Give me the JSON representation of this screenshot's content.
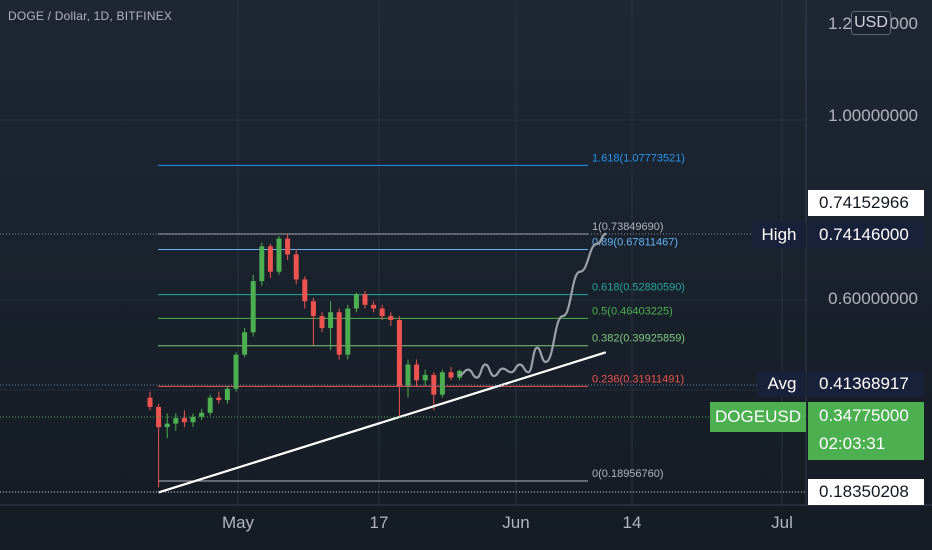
{
  "header": {
    "symbol_title": "DOGE / Dollar, 1D, BITFINEX",
    "currency_button": "USD"
  },
  "price_axis": {
    "ticks": [
      "1.20000000",
      "1.00000000",
      "0.60000000"
    ]
  },
  "price_tags": {
    "last_visible_price": "0.74152966",
    "high_label": "High",
    "high_value": "0.74146000",
    "avg_label": "Avg",
    "avg_value": "0.41368917",
    "symbol_label": "DOGEUSD",
    "current_price": "0.34775000",
    "countdown": "02:03:31",
    "low_value": "0.18350208"
  },
  "time_axis": {
    "labels": [
      "May",
      "17",
      "Jun",
      "14",
      "Jul"
    ]
  },
  "colors": {
    "up": "#4caf50",
    "down": "#ef5350",
    "fib_1618": "#2196f3",
    "fib_1": "#b2b5be",
    "fib_089": "#64b5f6",
    "fib_0618": "#26a69a",
    "fib_05": "#4caf50",
    "fib_0382": "#81c784",
    "fib_0236": "#ef5350",
    "fib_0": "#b2b5be",
    "trendline": "#ffffff",
    "projection": "#9aa0a8"
  },
  "chart_data": {
    "type": "candlestick",
    "title": "DOGE / Dollar, 1D, BITFINEX",
    "y_scale": "log",
    "ylim": [
      0.17,
      1.25
    ],
    "candles": [
      {
        "o": 0.3,
        "h": 0.31,
        "l": 0.28,
        "c": 0.285
      },
      {
        "o": 0.285,
        "h": 0.29,
        "l": 0.183,
        "c": 0.255
      },
      {
        "o": 0.255,
        "h": 0.275,
        "l": 0.24,
        "c": 0.26
      },
      {
        "o": 0.26,
        "h": 0.275,
        "l": 0.25,
        "c": 0.268
      },
      {
        "o": 0.268,
        "h": 0.28,
        "l": 0.255,
        "c": 0.262
      },
      {
        "o": 0.262,
        "h": 0.275,
        "l": 0.255,
        "c": 0.27
      },
      {
        "o": 0.27,
        "h": 0.282,
        "l": 0.265,
        "c": 0.276
      },
      {
        "o": 0.276,
        "h": 0.305,
        "l": 0.272,
        "c": 0.3
      },
      {
        "o": 0.3,
        "h": 0.31,
        "l": 0.29,
        "c": 0.296
      },
      {
        "o": 0.296,
        "h": 0.32,
        "l": 0.29,
        "c": 0.315
      },
      {
        "o": 0.315,
        "h": 0.385,
        "l": 0.31,
        "c": 0.38
      },
      {
        "o": 0.38,
        "h": 0.44,
        "l": 0.375,
        "c": 0.43
      },
      {
        "o": 0.43,
        "h": 0.59,
        "l": 0.42,
        "c": 0.57
      },
      {
        "o": 0.57,
        "h": 0.705,
        "l": 0.555,
        "c": 0.69
      },
      {
        "o": 0.69,
        "h": 0.7,
        "l": 0.58,
        "c": 0.6
      },
      {
        "o": 0.6,
        "h": 0.73,
        "l": 0.59,
        "c": 0.72
      },
      {
        "o": 0.72,
        "h": 0.741,
        "l": 0.64,
        "c": 0.66
      },
      {
        "o": 0.66,
        "h": 0.68,
        "l": 0.56,
        "c": 0.575
      },
      {
        "o": 0.575,
        "h": 0.585,
        "l": 0.49,
        "c": 0.51
      },
      {
        "o": 0.51,
        "h": 0.52,
        "l": 0.4,
        "c": 0.47
      },
      {
        "o": 0.47,
        "h": 0.48,
        "l": 0.43,
        "c": 0.44
      },
      {
        "o": 0.44,
        "h": 0.51,
        "l": 0.39,
        "c": 0.48
      },
      {
        "o": 0.48,
        "h": 0.49,
        "l": 0.37,
        "c": 0.38
      },
      {
        "o": 0.38,
        "h": 0.5,
        "l": 0.37,
        "c": 0.49
      },
      {
        "o": 0.49,
        "h": 0.535,
        "l": 0.48,
        "c": 0.53
      },
      {
        "o": 0.53,
        "h": 0.54,
        "l": 0.49,
        "c": 0.5
      },
      {
        "o": 0.5,
        "h": 0.51,
        "l": 0.48,
        "c": 0.49
      },
      {
        "o": 0.49,
        "h": 0.5,
        "l": 0.46,
        "c": 0.47
      },
      {
        "o": 0.47,
        "h": 0.48,
        "l": 0.445,
        "c": 0.46
      },
      {
        "o": 0.46,
        "h": 0.47,
        "l": 0.27,
        "c": 0.32
      },
      {
        "o": 0.32,
        "h": 0.37,
        "l": 0.3,
        "c": 0.36
      },
      {
        "o": 0.36,
        "h": 0.37,
        "l": 0.32,
        "c": 0.33
      },
      {
        "o": 0.33,
        "h": 0.35,
        "l": 0.32,
        "c": 0.34
      },
      {
        "o": 0.34,
        "h": 0.345,
        "l": 0.28,
        "c": 0.305
      },
      {
        "o": 0.305,
        "h": 0.35,
        "l": 0.3,
        "c": 0.345
      },
      {
        "o": 0.345,
        "h": 0.355,
        "l": 0.33,
        "c": 0.335
      },
      {
        "o": 0.335,
        "h": 0.35,
        "l": 0.33,
        "c": 0.34775
      }
    ],
    "fib_levels": [
      {
        "ratio": "1.618",
        "value": 1.07773521,
        "label": "1.618(1.07773521)",
        "color_key": "fib_1618"
      },
      {
        "ratio": "1",
        "value": 0.7384969,
        "label": "1(0.73849690)",
        "color_key": "fib_1"
      },
      {
        "ratio": "0.89",
        "value": 0.67811467,
        "label": "0.89(0.67811467)",
        "color_key": "fib_089"
      },
      {
        "ratio": "0.618",
        "value": 0.5288059,
        "label": "0.618(0.52880590)",
        "color_key": "fib_0618"
      },
      {
        "ratio": "0.5",
        "value": 0.46403225,
        "label": "0.5(0.46403225)",
        "color_key": "fib_05"
      },
      {
        "ratio": "0.382",
        "value": 0.39925859,
        "label": "0.382(0.39925859)",
        "color_key": "fib_0382"
      },
      {
        "ratio": "0.236",
        "value": 0.31911491,
        "label": "0.236(0.31911491)",
        "color_key": "fib_0236"
      },
      {
        "ratio": "0",
        "value": 0.1895676,
        "label": "0(0.18956760)",
        "color_key": "fib_0"
      }
    ],
    "projection_path": [
      [
        36,
        0.34
      ],
      [
        37,
        0.35
      ],
      [
        38,
        0.335
      ],
      [
        39,
        0.36
      ],
      [
        40,
        0.338
      ],
      [
        41,
        0.352
      ],
      [
        42,
        0.345
      ],
      [
        43,
        0.36
      ],
      [
        44,
        0.345
      ],
      [
        45,
        0.395
      ],
      [
        46,
        0.365
      ],
      [
        48,
        0.47
      ],
      [
        50,
        0.6
      ],
      [
        52,
        0.7
      ],
      [
        53,
        0.739
      ]
    ],
    "trendline": [
      [
        1,
        0.178
      ],
      [
        53,
        0.385
      ]
    ]
  }
}
